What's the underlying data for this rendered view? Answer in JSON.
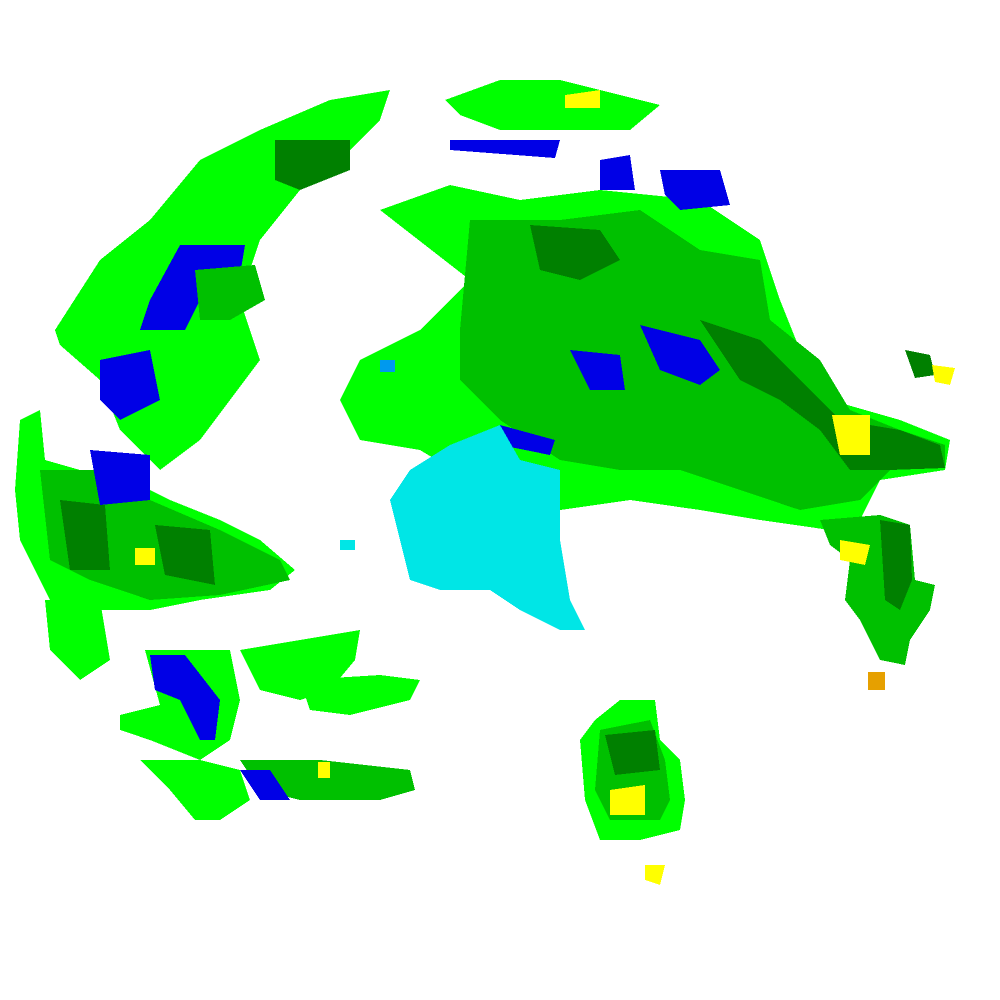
{
  "map": {
    "palette": {
      "light_green": "#00ff00",
      "medium_green": "#00c000",
      "dark_green": "#008000",
      "blue": "#0000e6",
      "light_blue": "#0099ee",
      "cyan": "#00e6e6",
      "yellow": "#ffff00",
      "orange": "#e6a000"
    }
  }
}
